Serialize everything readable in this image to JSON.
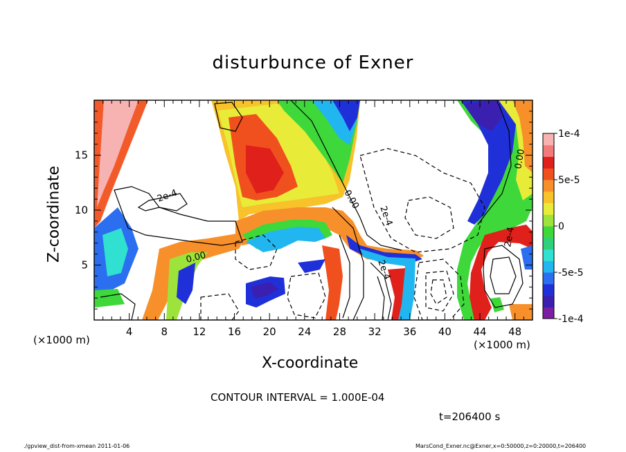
{
  "chart_data": {
    "type": "heatmap",
    "title": "disturbunce of Exner",
    "xlabel": "X-coordinate",
    "ylabel": "Z-coordinate",
    "x_unit_left": "(×1000 m)",
    "x_unit_right": "(×1000 m)",
    "xlim": [
      0,
      50
    ],
    "ylim": [
      0,
      20
    ],
    "x_ticks": [
      4,
      8,
      12,
      16,
      20,
      24,
      28,
      32,
      36,
      40,
      44,
      48
    ],
    "y_ticks": [
      5,
      10,
      15
    ],
    "colorbar": {
      "range": [
        -0.0001,
        0.0001
      ],
      "tick_values": [
        0.0001,
        5e-05,
        0,
        -5e-05,
        -0.0001
      ],
      "tick_labels": [
        "1e-4",
        "5e-5",
        "0",
        "-5e-5",
        "-1e-4"
      ],
      "colors": [
        "#7a1fa2",
        "#3a1fb0",
        "#2030d8",
        "#2b6ef0",
        "#21b6f0",
        "#30e0d0",
        "#2fd07a",
        "#3ed83a",
        "#9ee33b",
        "#e8ec38",
        "#f7c22a",
        "#f7902a",
        "#f0501e",
        "#e0201a",
        "#f27a7a",
        "#f7b2b2"
      ]
    },
    "contour_labels": [
      "2e-4",
      "0.00",
      "0.00",
      "2e-4",
      "2e-4",
      "2e-4",
      "0.00",
      "2e-4",
      "0.00"
    ],
    "contour_interval": "CONTOUR INTERVAL = 1.000E-04",
    "time_label": "t=206400 s",
    "footer_left": "./gpview_dist-from-xmean  2011-01-06",
    "footer_right": "MarsCond_Exner.nc@Exner,x=0:50000,z=0:20000,t=206400"
  }
}
